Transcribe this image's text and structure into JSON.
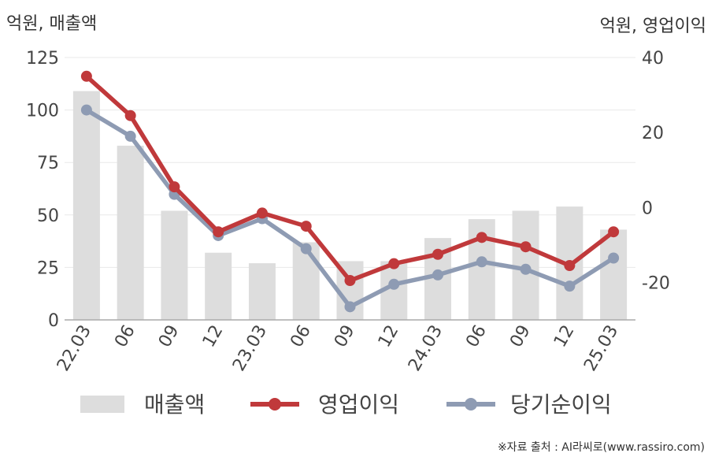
{
  "chart_data": {
    "type": "bar+line",
    "left_axis_title": "억원, 매출액",
    "right_axis_title": "억원, 영업이익",
    "categories": [
      "22.03",
      "06",
      "09",
      "12",
      "23.03",
      "06",
      "09",
      "12",
      "24.03",
      "06",
      "09",
      "12",
      "25.03"
    ],
    "left_ylim": [
      0,
      125
    ],
    "left_ticks": [
      0,
      25,
      50,
      75,
      100,
      125
    ],
    "right_ylim": [
      -30,
      40
    ],
    "right_ticks": [
      -20,
      0,
      20,
      40
    ],
    "grid": true,
    "legend_position": "bottom",
    "series": [
      {
        "name": "매출액",
        "type": "bar",
        "axis": "left",
        "color": "#dddddd",
        "values": [
          109,
          83,
          52,
          32,
          27,
          37,
          28,
          28,
          39,
          48,
          52,
          54,
          43
        ]
      },
      {
        "name": "영업이익",
        "type": "line",
        "axis": "right",
        "color": "#c0393b",
        "values": [
          35,
          24.5,
          5.5,
          -6.5,
          -1.5,
          -5,
          -19.5,
          -15,
          -12.5,
          -8,
          -10.5,
          -15.5,
          -6.5
        ]
      },
      {
        "name": "당기순이익",
        "type": "line",
        "axis": "right",
        "color": "#8e9bb3",
        "values": [
          26,
          19,
          3.5,
          -7.5,
          -3,
          -11,
          -26.5,
          -20.5,
          -18,
          -14.5,
          -16.5,
          -21,
          -13.5
        ]
      }
    ]
  },
  "source_note": "※자료 출처 : AI라씨로(www.rassiro.com)"
}
